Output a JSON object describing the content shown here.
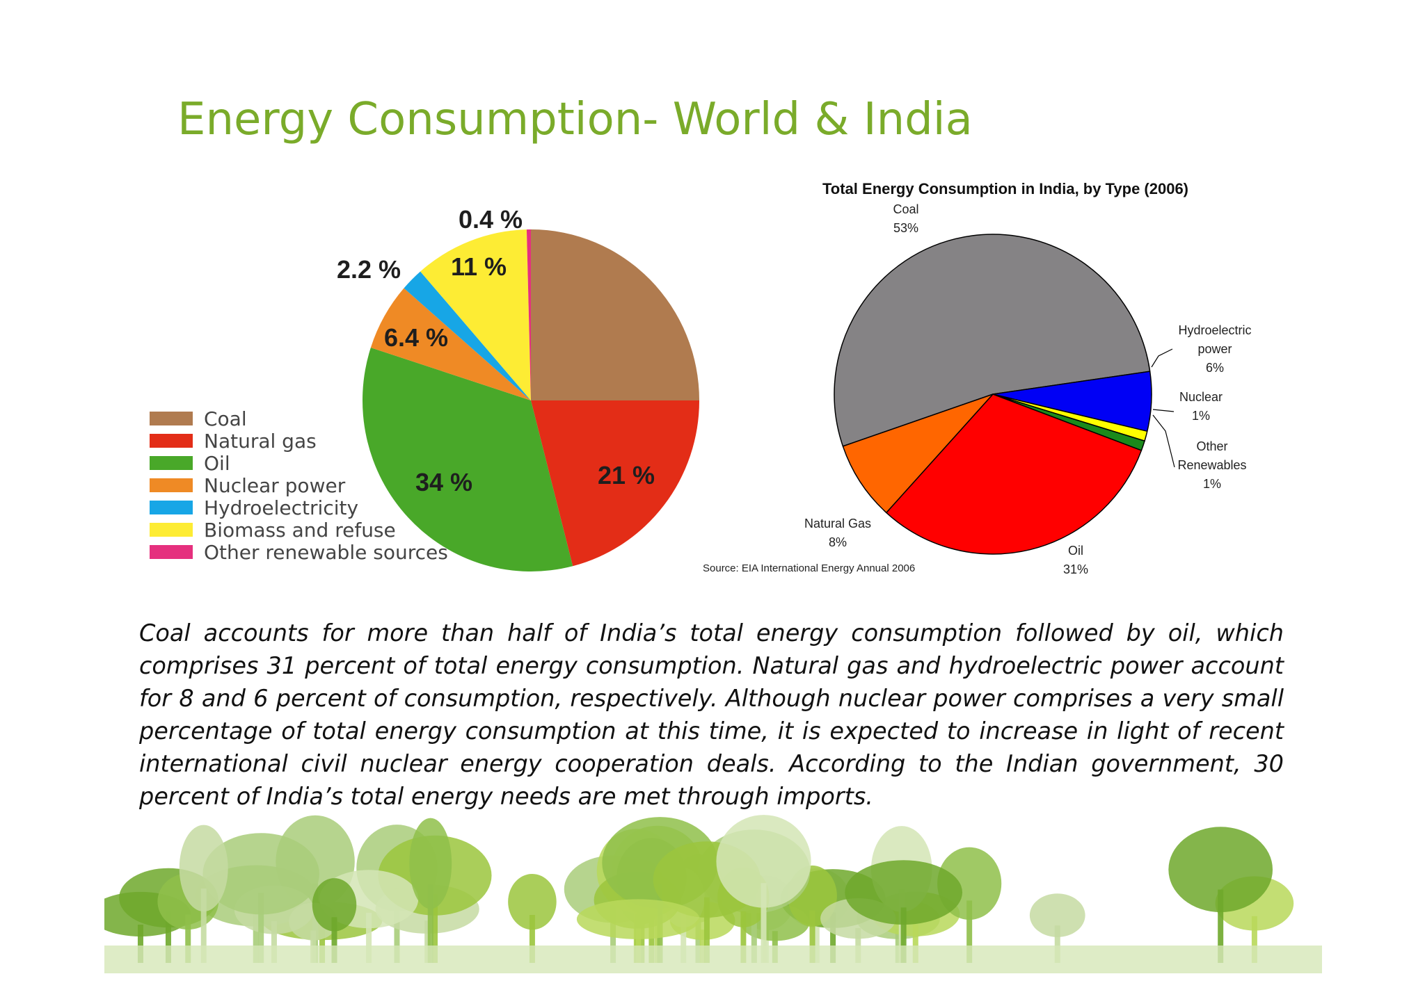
{
  "slide": {
    "title": "Energy Consumption- World & India",
    "body": "Coal accounts for more than half of India’s total energy consumption followed by oil, which comprises 31 percent of total energy consumption. Natural gas and hydroelectric power account for 8 and 6 percent of consumption, respectively. Although nuclear power comprises a very small percentage of total energy consumption at this time, it is expected to increase in light of recent international civil nuclear energy cooperation deals. According to the Indian government, 30 percent of India’s total energy needs are met through imports."
  },
  "chart_data": [
    {
      "type": "pie",
      "title": "",
      "legend_placement": "left",
      "slices": [
        {
          "label": "Coal",
          "value": 25,
          "value_label": "",
          "color": "#b07b4f"
        },
        {
          "label": "Natural gas",
          "value": 21,
          "value_label": "21 %",
          "color": "#e32d17"
        },
        {
          "label": "Oil",
          "value": 34,
          "value_label": "34 %",
          "color": "#49a829"
        },
        {
          "label": "Nuclear power",
          "value": 6.4,
          "value_label": "6.4 %",
          "color": "#ef8a25"
        },
        {
          "label": "Hydroelectricity",
          "value": 2.2,
          "value_label": "2.2 %",
          "color": "#17a6e6"
        },
        {
          "label": "Biomass and refuse",
          "value": 11,
          "value_label": "11 %",
          "color": "#fdec34"
        },
        {
          "label": "Other renewable sources",
          "value": 0.4,
          "value_label": "0.4 %",
          "color": "#e5307e"
        }
      ]
    },
    {
      "type": "pie",
      "title": "Total Energy Consumption in India, by Type (2006)",
      "source": "Source: EIA International Energy Annual 2006",
      "slices": [
        {
          "label": "Coal",
          "value": 53,
          "value_label": "53%",
          "color": "#858385"
        },
        {
          "label": "Hydroelectric power",
          "value": 6,
          "value_label": "6%",
          "color": "#0000f5"
        },
        {
          "label": "Nuclear",
          "value": 1,
          "value_label": "1%",
          "color": "#ffff00"
        },
        {
          "label": "Other Renewables",
          "value": 1,
          "value_label": "1%",
          "color": "#1b8a1b"
        },
        {
          "label": "Oil",
          "value": 31,
          "value_label": "31%",
          "color": "#ff0000"
        },
        {
          "label": "Natural Gas",
          "value": 8,
          "value_label": "8%",
          "color": "#ff6600"
        }
      ]
    }
  ]
}
